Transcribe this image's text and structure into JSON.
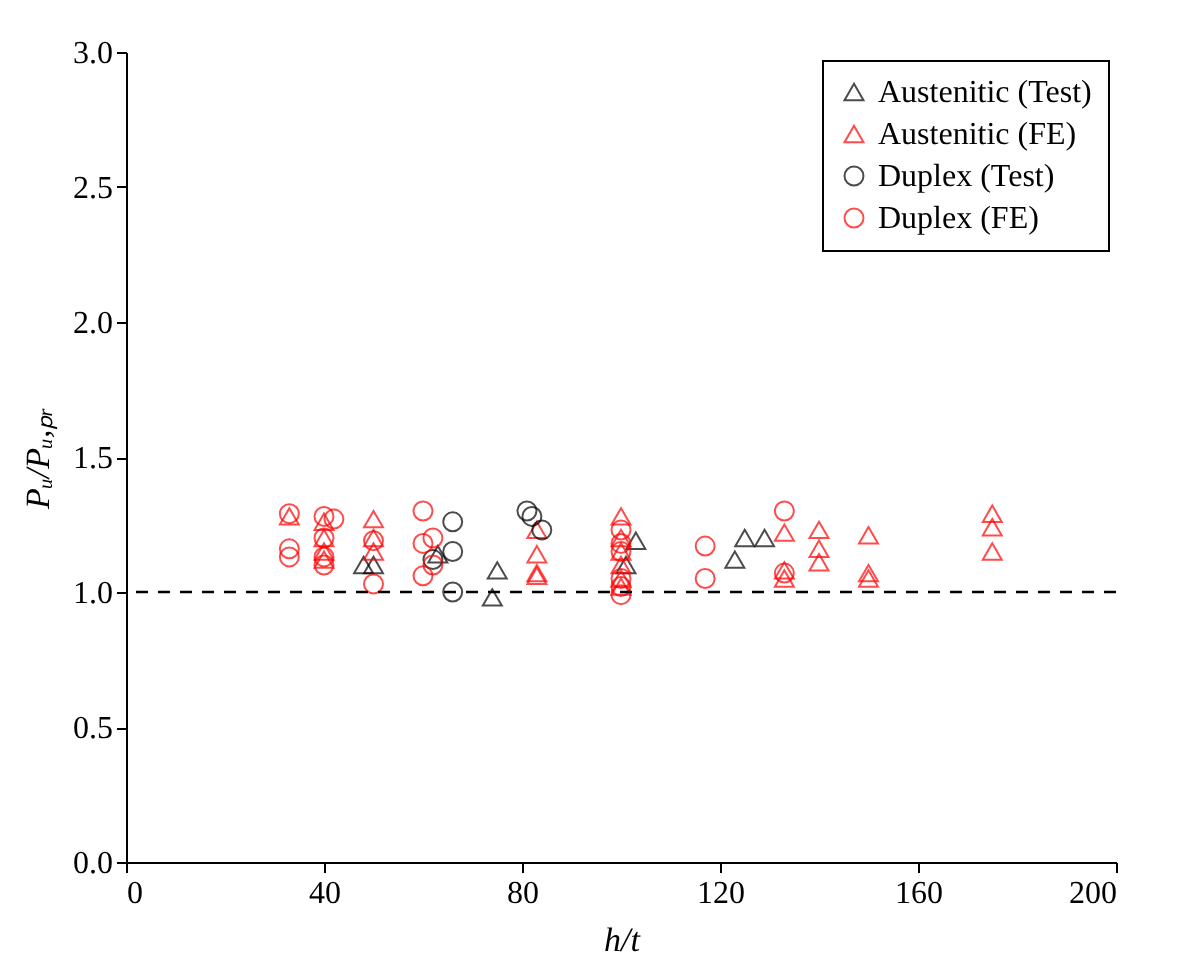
{
  "chart_data": {
    "type": "scatter",
    "xlabel": "h/t",
    "ylabel": "Pᵤ/Pᵤ,ₚᵣ",
    "xlim": [
      0,
      200
    ],
    "xticks": [
      0,
      40,
      80,
      120,
      160,
      200
    ],
    "ylim": [
      0,
      3
    ],
    "yticks": [
      {
        "value": 0,
        "label": "0.0"
      },
      {
        "value": 0.5,
        "label": "0.5"
      },
      {
        "value": 1,
        "label": "1.0"
      },
      {
        "value": 1.5,
        "label": "1.5"
      },
      {
        "value": 2,
        "label": "2.0"
      },
      {
        "value": 2.5,
        "label": "2.5"
      },
      {
        "value": 3,
        "label": "3.0"
      }
    ],
    "legend": "top right",
    "grid": false,
    "ref_lines": [
      {
        "axis": "y",
        "value": 1,
        "line_style": "dashed",
        "color": "#000000"
      }
    ],
    "series": [
      {
        "name": "Austenitic (Test)",
        "color": "#000000",
        "marker": "triangle",
        "x": [
          48,
          50,
          63,
          74,
          75,
          101,
          103,
          123,
          125,
          129
        ],
        "values": [
          1.1,
          1.1,
          1.14,
          0.98,
          1.08,
          1.1,
          1.19,
          1.12,
          1.2,
          1.2
        ]
      },
      {
        "name": "Austenitic (FE)",
        "color": "#ff0000",
        "marker": "triangle",
        "x": [
          33,
          40,
          40,
          40,
          40,
          50,
          50,
          50,
          83,
          83,
          83,
          83,
          100,
          100,
          100,
          100,
          100,
          100,
          133,
          133,
          133,
          140,
          140,
          140,
          150,
          150,
          150,
          175,
          175,
          175
        ],
        "values": [
          1.28,
          1.26,
          1.2,
          1.15,
          1.12,
          1.27,
          1.2,
          1.15,
          1.23,
          1.14,
          1.07,
          1.06,
          1.28,
          1.2,
          1.15,
          1.1,
          1.05,
          1.02,
          1.22,
          1.08,
          1.05,
          1.23,
          1.16,
          1.11,
          1.21,
          1.07,
          1.05,
          1.29,
          1.24,
          1.15
        ]
      },
      {
        "name": "Duplex (Test)",
        "color": "#000000",
        "marker": "circle",
        "x": [
          62,
          66,
          66,
          66,
          81,
          82,
          84
        ],
        "values": [
          1.12,
          1.26,
          1.15,
          1.0,
          1.3,
          1.28,
          1.23
        ]
      },
      {
        "name": "Duplex (FE)",
        "color": "#ff0000",
        "marker": "circle",
        "x": [
          33,
          33,
          33,
          40,
          40,
          40,
          40,
          42,
          50,
          50,
          60,
          60,
          60,
          62,
          62,
          100,
          100,
          100,
          100,
          100,
          100,
          117,
          117,
          133,
          133
        ],
        "values": [
          1.29,
          1.16,
          1.13,
          1.28,
          1.2,
          1.13,
          1.1,
          1.27,
          1.19,
          1.03,
          1.3,
          1.18,
          1.06,
          1.2,
          1.1,
          1.23,
          1.18,
          1.15,
          1.05,
          1.02,
          0.99,
          1.17,
          1.05,
          1.3,
          1.07
        ]
      }
    ]
  }
}
